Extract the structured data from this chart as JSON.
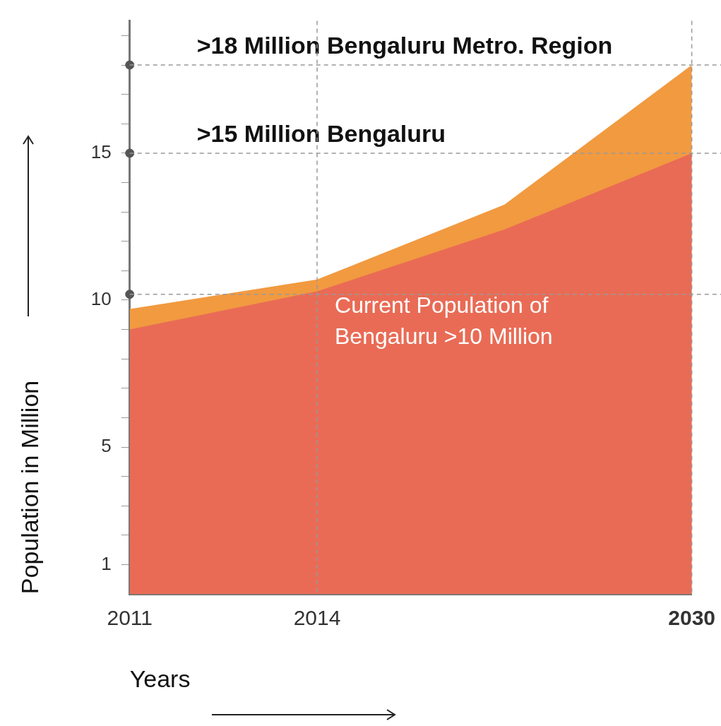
{
  "chart_data": {
    "type": "area",
    "xlabel": "Years",
    "ylabel": "Population in Million",
    "categories": [
      "2011",
      "2014",
      null,
      "2030"
    ],
    "series": [
      {
        "color": "#f19a40",
        "values": [
          9.7,
          10.7,
          13.25,
          18
        ]
      },
      {
        "color": "#e96b55",
        "values": [
          9.0,
          10.3,
          12.4,
          15
        ]
      },
      {
        "type": "scatter",
        "color": "#555555",
        "marker": "circle",
        "values": [
          18,
          null,
          null,
          null
        ]
      },
      {
        "type": "scatter",
        "color": "#555555",
        "marker": "circle",
        "values": [
          15,
          null,
          null,
          null
        ]
      },
      {
        "type": "scatter",
        "color": "#555555",
        "marker": "circle",
        "values": [
          10.2,
          null,
          null,
          null
        ]
      }
    ],
    "ylim": [
      0,
      19.5
    ],
    "yticks": [
      1,
      {
        "value": 2,
        "label": null
      },
      {
        "value": 3,
        "label": null
      },
      {
        "value": 4,
        "label": null
      },
      5,
      {
        "value": 6,
        "label": null
      },
      {
        "value": 7,
        "label": null
      },
      {
        "value": 8,
        "label": null
      },
      {
        "value": 9,
        "label": null
      },
      10,
      {
        "value": 11,
        "label": null
      },
      {
        "value": 12,
        "label": null
      },
      {
        "value": 13,
        "label": null
      },
      {
        "value": 14,
        "label": null
      },
      15,
      {
        "value": 16,
        "label": null
      },
      {
        "value": 17,
        "label": null
      },
      {
        "value": 18,
        "label": null
      },
      {
        "value": 19,
        "label": null
      }
    ],
    "ref_lines": [
      {
        "axis": "y",
        "value": 18,
        "label": ">18 Million Bengaluru Metro. Region",
        "color": "#999999",
        "line_style": "dashed"
      },
      {
        "axis": "y",
        "value": 15,
        "label": ">15 Million Bengaluru",
        "color": "#999999",
        "line_style": "dashed"
      },
      {
        "axis": "y",
        "value": 10.2,
        "color": "#999999",
        "line_style": "dashed"
      },
      {
        "axis": "x",
        "value": "2014",
        "color": "#999999",
        "line_style": "dashed"
      },
      {
        "axis": "x",
        "value": "2030",
        "color": "#999999",
        "line_style": "dashed"
      }
    ],
    "annotations": [
      {
        "text": "Current Population of Bengaluru >10 Million",
        "x": "2014",
        "y": 10.2
      }
    ],
    "grid": false,
    "legend": false
  }
}
